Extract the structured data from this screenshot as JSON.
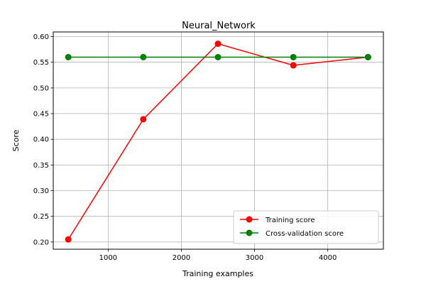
{
  "chart_data": {
    "type": "line",
    "title": "Neural_Network",
    "xlabel": "Training examples",
    "ylabel": "Score",
    "xlim": [
      250,
      4760
    ],
    "ylim": [
      0.186,
      0.609
    ],
    "xticks": [
      1000,
      2000,
      3000,
      4000
    ],
    "yticks": [
      0.2,
      0.25,
      0.3,
      0.35,
      0.4,
      0.45,
      0.5,
      0.55,
      0.6
    ],
    "grid": true,
    "legend_position": "bottom-right",
    "x": [
      455,
      1480,
      2500,
      3530,
      4550
    ],
    "series": [
      {
        "name": "Training score",
        "color": "#ff0000",
        "values": [
          0.205,
          0.439,
          0.586,
          0.544,
          0.56
        ]
      },
      {
        "name": "Cross-validation score",
        "color": "#008000",
        "values": [
          0.56,
          0.56,
          0.56,
          0.56,
          0.56
        ]
      }
    ]
  }
}
